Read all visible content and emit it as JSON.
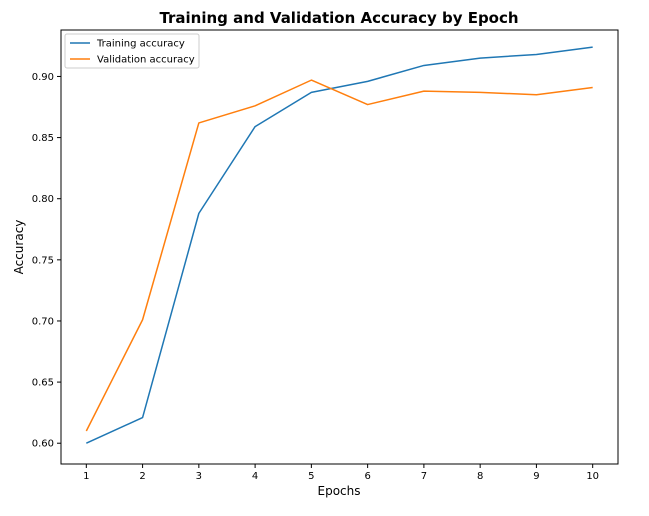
{
  "chart_data": {
    "type": "line",
    "title": "Training and Validation Accuracy by Epoch",
    "xlabel": "Epochs",
    "ylabel": "Accuracy",
    "x": [
      1,
      2,
      3,
      4,
      5,
      6,
      7,
      8,
      9,
      10
    ],
    "xlim": [
      0.55,
      10.45
    ],
    "ylim": [
      0.583,
      0.938
    ],
    "xticks": [
      1,
      2,
      3,
      4,
      5,
      6,
      7,
      8,
      9,
      10
    ],
    "yticks": [
      0.6,
      0.65,
      0.7,
      0.75,
      0.8,
      0.85,
      0.9
    ],
    "grid": false,
    "legend_position": "top-left",
    "series": [
      {
        "name": "Training accuracy",
        "color": "#1f77b4",
        "values": [
          0.6,
          0.621,
          0.788,
          0.859,
          0.887,
          0.896,
          0.909,
          0.915,
          0.918,
          0.924
        ]
      },
      {
        "name": "Validation accuracy",
        "color": "#ff7f0e",
        "values": [
          0.61,
          0.701,
          0.862,
          0.876,
          0.897,
          0.877,
          0.888,
          0.887,
          0.885,
          0.891
        ]
      }
    ]
  }
}
